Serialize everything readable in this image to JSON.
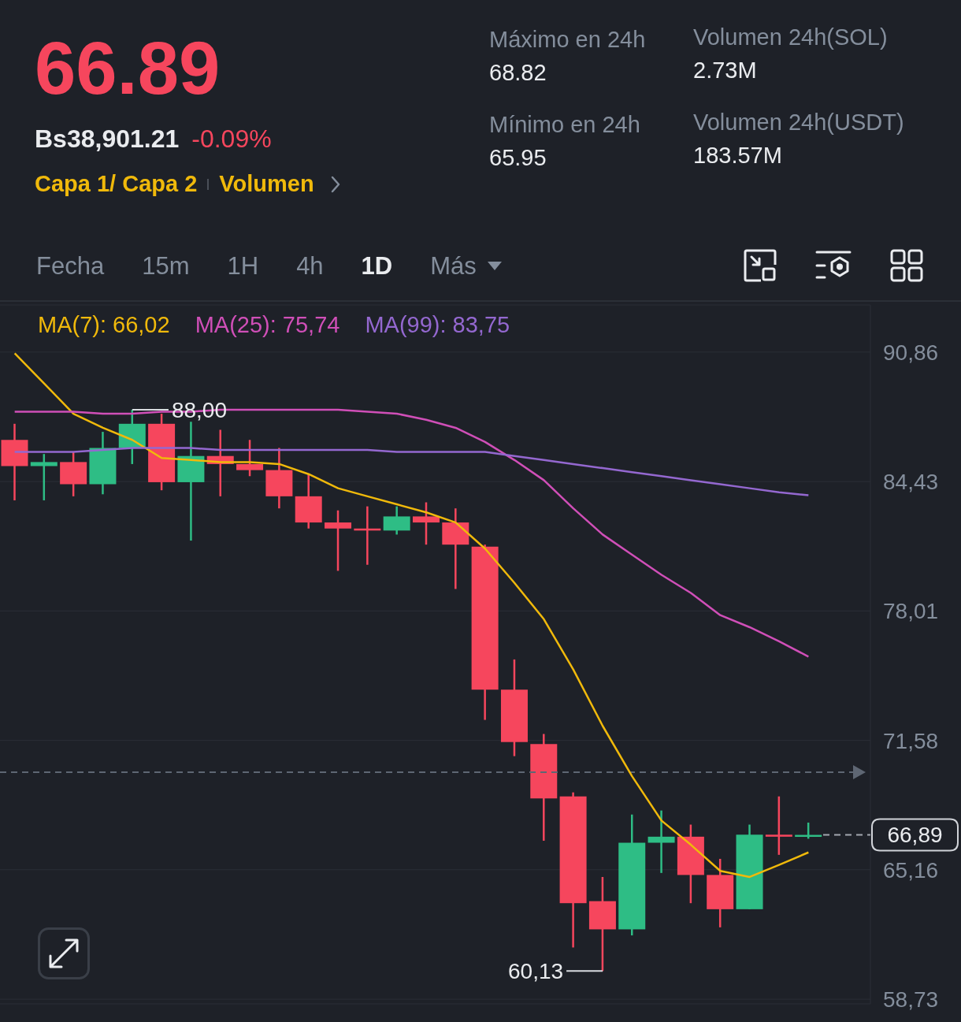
{
  "chart_data": [
    {
      "type": "other",
      "annotations": [
        "66.89",
        "Bs38,901.21",
        "-0.09%",
        "Capa 1/ Capa 2",
        "Volumen",
        "Máximo en 24h",
        "68.82",
        "Mínimo en 24h",
        "65.95",
        "Volumen 24h(SOL)",
        "2.73M",
        "Volumen 24h(USDT)",
        "183.57M",
        "Fecha",
        "15m",
        "1H",
        "4h",
        "1D",
        "Más"
      ]
    },
    {
      "type": "candlestick",
      "categories": [
        null,
        null,
        null,
        null,
        null,
        null,
        null,
        null,
        null,
        null,
        null,
        null,
        null,
        null,
        null,
        null,
        null,
        null,
        null,
        null,
        null,
        null,
        null,
        null,
        null,
        null,
        null,
        null
      ],
      "ohlc": [
        [
          86.5,
          87.3,
          83.5,
          85.2
        ],
        [
          85.2,
          85.8,
          83.5,
          85.4
        ],
        [
          85.4,
          85.9,
          83.7,
          84.3
        ],
        [
          84.3,
          86.9,
          83.8,
          86.1
        ],
        [
          86.1,
          88.0,
          85.3,
          87.3
        ],
        [
          87.3,
          87.8,
          84.0,
          84.4
        ],
        [
          84.4,
          87.4,
          81.5,
          85.7
        ],
        [
          85.7,
          87.0,
          83.7,
          85.3
        ],
        [
          85.3,
          86.5,
          84.7,
          85.0
        ],
        [
          85.0,
          86.1,
          83.1,
          83.7
        ],
        [
          83.7,
          84.8,
          82.1,
          82.4
        ],
        [
          82.4,
          83.0,
          80.0,
          82.1
        ],
        [
          82.1,
          83.2,
          80.3,
          82.0
        ],
        [
          82.0,
          83.2,
          81.8,
          82.7
        ],
        [
          82.7,
          83.4,
          81.3,
          82.4
        ],
        [
          82.4,
          83.1,
          79.1,
          81.3
        ],
        [
          81.2,
          81.3,
          72.6,
          74.1
        ],
        [
          74.1,
          75.6,
          70.8,
          71.5
        ],
        [
          71.4,
          71.9,
          66.6,
          68.7
        ],
        [
          68.8,
          69.0,
          61.3,
          63.5
        ],
        [
          63.6,
          64.8,
          60.13,
          62.2
        ],
        [
          62.2,
          67.9,
          61.9,
          66.5
        ],
        [
          66.5,
          68.1,
          65.0,
          66.8
        ],
        [
          66.8,
          67.4,
          63.5,
          64.9
        ],
        [
          64.9,
          65.7,
          62.3,
          63.2
        ],
        [
          63.2,
          67.4,
          63.2,
          66.9
        ],
        [
          66.9,
          68.8,
          65.9,
          66.8
        ],
        [
          66.8,
          67.5,
          66.7,
          66.89
        ]
      ],
      "colors": [
        "#f6465d",
        "#2ebd85",
        "#f6465d",
        "#2ebd85",
        "#2ebd85",
        "#f6465d",
        "#2ebd85",
        "#f6465d",
        "#f6465d",
        "#f6465d",
        "#f6465d",
        "#f6465d",
        "#f6465d",
        "#2ebd85",
        "#f6465d",
        "#f6465d",
        "#f6465d",
        "#f6465d",
        "#f6465d",
        "#f6465d",
        "#f6465d",
        "#2ebd85",
        "#2ebd85",
        "#f6465d",
        "#f6465d",
        "#2ebd85",
        "#f6465d",
        "#2ebd85"
      ],
      "series": [
        {
          "type": "line",
          "name": "MA(7): 66,02",
          "color": "#f0b90b",
          "values": [
            90.8,
            89.3,
            87.8,
            87.1,
            86.5,
            85.6,
            85.5,
            85.4,
            85.4,
            85.3,
            84.8,
            84.1,
            83.7,
            83.3,
            82.9,
            82.4,
            81.1,
            79.4,
            77.6,
            75.1,
            72.3,
            69.8,
            67.6,
            66.4,
            65.1,
            64.8,
            65.4,
            66.02
          ]
        },
        {
          "type": "line",
          "name": "MA(25): 75,74",
          "color": "#d04fb8",
          "values": [
            87.9,
            87.9,
            87.9,
            87.8,
            87.8,
            87.9,
            87.9,
            88.0,
            88.0,
            88.0,
            88.0,
            88.0,
            87.9,
            87.8,
            87.5,
            87.1,
            86.4,
            85.5,
            84.5,
            83.1,
            81.8,
            80.8,
            79.8,
            78.9,
            77.8,
            77.2,
            76.5,
            75.74
          ]
        },
        {
          "type": "line",
          "name": "MA(99): 83,75",
          "color": "#9468d0",
          "values": [
            85.9,
            85.9,
            85.9,
            86.0,
            86.1,
            86.1,
            86.1,
            86.0,
            86.0,
            86.0,
            86.0,
            86.0,
            86.0,
            85.9,
            85.9,
            85.9,
            85.9,
            85.7,
            85.5,
            85.3,
            85.1,
            84.9,
            84.7,
            84.5,
            84.3,
            84.1,
            83.9,
            83.75
          ]
        }
      ],
      "ylim": [
        58.5,
        93.2
      ],
      "yticks": [
        {
          "value": 90.86,
          "label": "90,86"
        },
        {
          "value": 84.43,
          "label": "84,43"
        },
        {
          "value": 78.01,
          "label": "78,01"
        },
        {
          "value": 71.58,
          "label": "71,58"
        },
        {
          "value": 65.16,
          "label": "65,16"
        },
        {
          "value": 58.73,
          "label": "58,73"
        }
      ],
      "grid": "y",
      "legend": "top left",
      "tick_labels": "y",
      "ref_lines": [
        {
          "axis": "y",
          "value": 70.0,
          "line_style": "dashed",
          "color": "#5e6673"
        }
      ],
      "annotations": [
        {
          "text": "88,00",
          "y": 88.0
        },
        "60,13",
        "66,89"
      ]
    }
  ]
}
